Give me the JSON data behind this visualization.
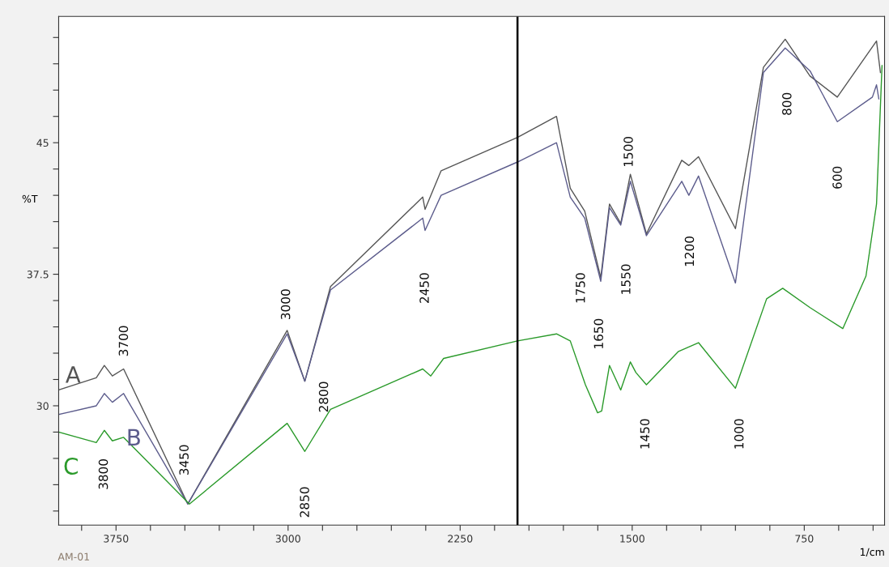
{
  "chart_data": {
    "type": "line",
    "xlabel": "1/cm",
    "ylabel": "%T",
    "x": [
      4000,
      3836,
      3801,
      3766,
      3717,
      3437,
      3004,
      2927,
      2815,
      2413,
      2403,
      2333,
      2000,
      1830,
      1770,
      1707,
      1637,
      1599,
      1550,
      1508,
      1438,
      1284,
      1253,
      1211,
      1050,
      928,
      833,
      725,
      606,
      435,
      418
    ],
    "series": [
      {
        "name": "A",
        "color": "#555555",
        "values": [
          30.9,
          31.6,
          32.3,
          31.7,
          32.1,
          24.4,
          34.3,
          31.4,
          36.8,
          41.9,
          41.2,
          43.4,
          45.3,
          46.5,
          42.4,
          41.1,
          37.3,
          41.5,
          40.4,
          43.2,
          39.8,
          44.0,
          43.7,
          44.2,
          40.1,
          49.3,
          50.9,
          48.8,
          47.6,
          50.8,
          49.0
        ]
      },
      {
        "name": "B",
        "color": "#5c5c8c",
        "x": [
          4000,
          3836,
          3801,
          3766,
          3717,
          3437,
          3004,
          2927,
          2815,
          2413,
          2403,
          2333,
          2000,
          1830,
          1770,
          1707,
          1637,
          1599,
          1550,
          1508,
          1438,
          1284,
          1253,
          1211,
          1050,
          928,
          833,
          725,
          606,
          453,
          435,
          425
        ],
        "values": [
          29.5,
          30.0,
          30.7,
          30.2,
          30.7,
          24.4,
          34.1,
          31.4,
          36.6,
          40.7,
          40.0,
          42.0,
          43.9,
          45.0,
          41.9,
          40.7,
          37.1,
          41.3,
          40.3,
          42.8,
          39.7,
          42.8,
          42.0,
          43.1,
          37.0,
          49.0,
          50.4,
          49.1,
          46.2,
          47.6,
          48.3,
          47.5
        ]
      },
      {
        "name": "C",
        "color": "#2a9a2a",
        "x": [
          4000,
          3836,
          3801,
          3766,
          3717,
          3430,
          3004,
          2927,
          2815,
          2413,
          2378,
          2322,
          2000,
          1830,
          1770,
          1704,
          1651,
          1633,
          1599,
          1550,
          1508,
          1484,
          1438,
          1298,
          1211,
          1050,
          914,
          844,
          725,
          582,
          481,
          435,
          411
        ],
        "values": [
          28.5,
          27.9,
          28.6,
          28.0,
          28.2,
          24.4,
          29.0,
          27.4,
          29.8,
          32.1,
          31.7,
          32.7,
          33.7,
          34.1,
          33.7,
          31.2,
          29.6,
          29.7,
          32.3,
          30.9,
          32.5,
          31.9,
          31.2,
          33.1,
          33.6,
          31.0,
          36.1,
          36.7,
          35.6,
          34.4,
          37.4,
          41.5,
          49.4
        ]
      }
    ],
    "xlim": [
      4000,
      400
    ],
    "xticks": [
      {
        "value": 3900,
        "label": null
      },
      3750,
      {
        "value": 3600,
        "label": null
      },
      {
        "value": 3450,
        "label": null
      },
      {
        "value": 3300,
        "label": null
      },
      {
        "value": 3150,
        "label": null
      },
      3000,
      {
        "value": 2850,
        "label": null
      },
      {
        "value": 2700,
        "label": null
      },
      {
        "value": 2550,
        "label": null
      },
      {
        "value": 2400,
        "label": null
      },
      2250,
      {
        "value": 2100,
        "label": null
      },
      {
        "value": 1950,
        "label": null
      },
      {
        "value": 1800,
        "label": null
      },
      {
        "value": 1650,
        "label": null
      },
      1500,
      {
        "value": 1350,
        "label": null
      },
      {
        "value": 1200,
        "label": null
      },
      {
        "value": 1050,
        "label": null
      },
      {
        "value": 900,
        "label": null
      },
      750,
      {
        "value": 600,
        "label": null
      },
      {
        "value": 450,
        "label": null
      }
    ],
    "ylim": [
      23.2,
      52.2
    ],
    "yticks": [
      {
        "value": 24,
        "label": null
      },
      {
        "value": 25.5,
        "label": null
      },
      {
        "value": 27,
        "label": null
      },
      {
        "value": 28.5,
        "label": null
      },
      30,
      {
        "value": 31.5,
        "label": null
      },
      {
        "value": 33,
        "label": null
      },
      {
        "value": 34.5,
        "label": null
      },
      {
        "value": 36,
        "label": null
      },
      37.5,
      {
        "value": 39,
        "label": null
      },
      {
        "value": 40.5,
        "label": null
      },
      {
        "value": 42,
        "label": null
      },
      {
        "value": 43.5,
        "label": null
      },
      45,
      {
        "value": 46.5,
        "label": null
      },
      {
        "value": 48,
        "label": null
      },
      {
        "value": 49.5,
        "label": null
      },
      {
        "value": 51,
        "label": null
      }
    ],
    "ref_lines": [
      {
        "axis": "x",
        "value": 2000,
        "color": "#000000"
      }
    ],
    "grid": false,
    "legend": false,
    "marker": "none",
    "line_style": "solid",
    "annotations": [
      "3700",
      "3800",
      "3450",
      "3000",
      "2850",
      "2800",
      "2450",
      "1750",
      "1650",
      "1550",
      "1500",
      "1450",
      "1200",
      "1000",
      "800",
      "600",
      "AM-01"
    ]
  }
}
